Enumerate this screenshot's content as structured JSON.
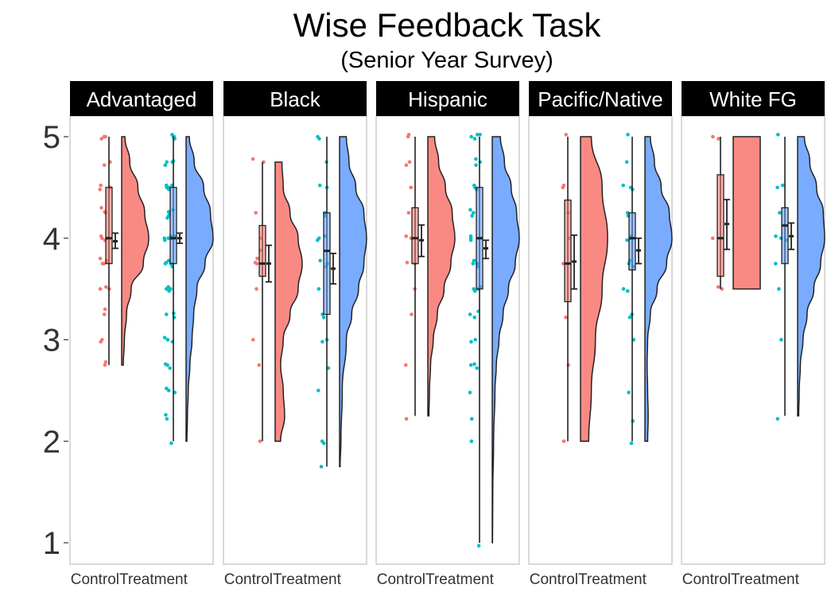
{
  "chart_data": {
    "type": "raincloud",
    "title": "Wise Feedback Task",
    "subtitle": "(Senior Year Survey)",
    "xlabel": "",
    "ylabel": "",
    "ylim": [
      0.8,
      5.2
    ],
    "y_ticks": [
      1,
      2,
      3,
      4,
      5
    ],
    "grid": false,
    "legend": "none",
    "categories": [
      "Control",
      "Treatment"
    ],
    "colors": {
      "control_fill": "#F8766D",
      "treatment_fill": "#619CFF",
      "control_point": "#F8766D",
      "treatment_point": "#00BFC4",
      "strip_bg": "#000000",
      "strip_text": "#FFFFFF",
      "panel_border": "#B3B3B3",
      "outline": "#222222"
    },
    "panels": [
      {
        "name": "Advantaged",
        "groups": [
          {
            "condition": "Control",
            "range": [
              2.75,
              5
            ],
            "quartiles": [
              3.75,
              4,
              4.5
            ],
            "mean": 3.97,
            "se": [
              3.9,
              4.05
            ],
            "density": [
              [
                2.75,
                0.06
              ],
              [
                3,
                0.1
              ],
              [
                3.25,
                0.18
              ],
              [
                3.5,
                0.35
              ],
              [
                3.75,
                0.8
              ],
              [
                4,
                1
              ],
              [
                4.25,
                0.85
              ],
              [
                4.5,
                0.6
              ],
              [
                4.75,
                0.3
              ],
              [
                5,
                0.12
              ]
            ],
            "points": [
              2.75,
              2.78,
              2.98,
              3.0,
              3.25,
              3.3,
              3.5,
              3.5,
              3.52,
              3.75,
              3.75,
              3.76,
              3.78,
              3.8,
              3.98,
              4.0,
              4.0,
              4.02,
              4.25,
              4.26,
              4.3,
              4.48,
              4.5,
              4.5,
              4.52,
              4.72,
              4.75,
              4.98,
              5.0,
              5.0
            ]
          },
          {
            "condition": "Treatment",
            "range": [
              2,
              5
            ],
            "quartiles": [
              3.75,
              4,
              4.5
            ],
            "mean": 4.0,
            "se": [
              3.95,
              4.05
            ],
            "density": [
              [
                2,
                0.03
              ],
              [
                2.25,
                0.05
              ],
              [
                2.5,
                0.08
              ],
              [
                2.75,
                0.14
              ],
              [
                3,
                0.22
              ],
              [
                3.25,
                0.28
              ],
              [
                3.5,
                0.4
              ],
              [
                3.75,
                0.7
              ],
              [
                4,
                1
              ],
              [
                4.25,
                0.9
              ],
              [
                4.5,
                0.65
              ],
              [
                4.75,
                0.3
              ],
              [
                5,
                0.12
              ]
            ],
            "points": [
              1.98,
              2.22,
              2.26,
              2.48,
              2.5,
              2.52,
              2.72,
              2.75,
              2.76,
              2.98,
              3.0,
              3.0,
              3.02,
              3.22,
              3.25,
              3.26,
              3.48,
              3.5,
              3.5,
              3.52,
              3.72,
              3.75,
              3.75,
              3.76,
              3.78,
              3.98,
              4.0,
              4.0,
              4.0,
              4.02,
              4.02,
              4.2,
              4.22,
              4.25,
              4.26,
              4.28,
              4.48,
              4.5,
              4.5,
              4.52,
              4.52,
              4.72,
              4.75,
              4.75,
              4.76,
              4.98,
              5.0,
              5.0,
              5.02
            ]
          }
        ]
      },
      {
        "name": "Black",
        "groups": [
          {
            "condition": "Control",
            "range": [
              2,
              4.75
            ],
            "quartiles": [
              3.625,
              3.75,
              4.125
            ],
            "mean": 3.75,
            "se": [
              3.57,
              3.93
            ],
            "density": [
              [
                2,
                0.2
              ],
              [
                2.25,
                0.35
              ],
              [
                2.5,
                0.3
              ],
              [
                2.75,
                0.2
              ],
              [
                3,
                0.3
              ],
              [
                3.25,
                0.55
              ],
              [
                3.5,
                0.85
              ],
              [
                3.75,
                1
              ],
              [
                4,
                0.85
              ],
              [
                4.25,
                0.55
              ],
              [
                4.5,
                0.3
              ],
              [
                4.75,
                0.25
              ]
            ],
            "points": [
              2.0,
              2.75,
              3.0,
              3.5,
              3.75,
              3.76,
              3.8,
              3.88,
              4.0,
              4.25,
              4.75,
              4.78
            ]
          },
          {
            "condition": "Treatment",
            "range": [
              1.75,
              5
            ],
            "quartiles": [
              3.25,
              3.875,
              4.25
            ],
            "mean": 3.7,
            "se": [
              3.55,
              3.85
            ],
            "density": [
              [
                1.75,
                0.02
              ],
              [
                2,
                0.05
              ],
              [
                2.5,
                0.1
              ],
              [
                3,
                0.25
              ],
              [
                3.25,
                0.45
              ],
              [
                3.5,
                0.7
              ],
              [
                3.75,
                0.9
              ],
              [
                4,
                1
              ],
              [
                4.25,
                0.9
              ],
              [
                4.5,
                0.6
              ],
              [
                4.75,
                0.35
              ],
              [
                5,
                0.25
              ]
            ],
            "points": [
              1.75,
              1.98,
              2.0,
              2.5,
              2.72,
              2.98,
              3.0,
              3.22,
              3.25,
              3.5,
              3.72,
              3.75,
              3.78,
              3.98,
              4.0,
              4.02,
              4.22,
              4.25,
              4.5,
              4.52,
              4.75,
              4.98,
              5.0
            ]
          }
        ]
      },
      {
        "name": "Hispanic",
        "groups": [
          {
            "condition": "Control",
            "range": [
              2.25,
              5
            ],
            "quartiles": [
              3.75,
              4,
              4.3
            ],
            "mean": 3.98,
            "se": [
              3.82,
              4.13
            ],
            "density": [
              [
                2.25,
                0.04
              ],
              [
                2.5,
                0.06
              ],
              [
                2.75,
                0.1
              ],
              [
                3,
                0.2
              ],
              [
                3.25,
                0.35
              ],
              [
                3.5,
                0.6
              ],
              [
                3.75,
                0.85
              ],
              [
                4,
                1
              ],
              [
                4.25,
                0.9
              ],
              [
                4.5,
                0.65
              ],
              [
                4.75,
                0.4
              ],
              [
                5,
                0.25
              ]
            ],
            "points": [
              2.22,
              2.75,
              3.25,
              3.5,
              3.75,
              3.76,
              4.0,
              4.02,
              4.25,
              4.5,
              4.72,
              4.75,
              5.0,
              5.02
            ]
          },
          {
            "condition": "Treatment",
            "range": [
              1,
              5
            ],
            "quartiles": [
              3.5,
              4,
              4.5
            ],
            "mean": 3.9,
            "se": [
              3.8,
              3.98
            ],
            "density": [
              [
                1,
                0.01
              ],
              [
                1.5,
                0.02
              ],
              [
                2,
                0.05
              ],
              [
                2.5,
                0.1
              ],
              [
                2.75,
                0.15
              ],
              [
                3,
                0.25
              ],
              [
                3.25,
                0.4
              ],
              [
                3.5,
                0.6
              ],
              [
                3.75,
                0.85
              ],
              [
                4,
                1
              ],
              [
                4.25,
                0.9
              ],
              [
                4.5,
                0.7
              ],
              [
                4.75,
                0.45
              ],
              [
                5,
                0.3
              ]
            ],
            "points": [
              0.97,
              2.0,
              2.22,
              2.48,
              2.72,
              2.75,
              2.76,
              2.98,
              3.0,
              3.22,
              3.25,
              3.28,
              3.48,
              3.5,
              3.5,
              3.52,
              3.72,
              3.75,
              3.75,
              3.78,
              3.98,
              4.0,
              4.0,
              4.02,
              4.22,
              4.25,
              4.28,
              4.48,
              4.5,
              4.52,
              4.72,
              4.75,
              4.78,
              4.98,
              5.0,
              5.02,
              5.02
            ]
          }
        ]
      },
      {
        "name": "Pacific/Native",
        "groups": [
          {
            "condition": "Control",
            "range": [
              2,
              5
            ],
            "quartiles": [
              3.375,
              3.75,
              4.375
            ],
            "mean": 3.77,
            "se": [
              3.5,
              4.03
            ],
            "density": [
              [
                2,
                0.3
              ],
              [
                2.5,
                0.4
              ],
              [
                3,
                0.55
              ],
              [
                3.5,
                0.8
              ],
              [
                4,
                1
              ],
              [
                4.5,
                0.8
              ],
              [
                5,
                0.4
              ]
            ],
            "points": [
              2.0,
              2.75,
              3.22,
              3.75,
              4.0,
              4.25,
              4.5,
              4.52,
              5.02
            ]
          },
          {
            "condition": "Treatment",
            "range": [
              2,
              5
            ],
            "quartiles": [
              3.6875,
              4,
              4.25
            ],
            "mean": 3.88,
            "se": [
              3.75,
              4.0
            ],
            "density": [
              [
                2,
                0.1
              ],
              [
                2.25,
                0.12
              ],
              [
                2.5,
                0.1
              ],
              [
                2.75,
                0.08
              ],
              [
                3,
                0.1
              ],
              [
                3.25,
                0.2
              ],
              [
                3.5,
                0.45
              ],
              [
                3.75,
                0.8
              ],
              [
                4,
                1
              ],
              [
                4.25,
                0.9
              ],
              [
                4.5,
                0.6
              ],
              [
                4.75,
                0.35
              ],
              [
                5,
                0.2
              ]
            ],
            "points": [
              1.98,
              2.2,
              2.48,
              3.0,
              3.22,
              3.25,
              3.48,
              3.5,
              3.72,
              3.75,
              3.78,
              3.98,
              4.0,
              4.02,
              4.22,
              4.25,
              4.48,
              4.5,
              4.52,
              4.75,
              5.02
            ]
          }
        ]
      },
      {
        "name": "White FG",
        "groups": [
          {
            "condition": "Control",
            "range": [
              3.5,
              5
            ],
            "quartiles": [
              3.625,
              4,
              4.625
            ],
            "mean": 4.14,
            "se": [
              3.89,
              4.38
            ],
            "density": [
              [
                3.5,
                1
              ],
              [
                3.75,
                1
              ],
              [
                4,
                1
              ],
              [
                4.25,
                1
              ],
              [
                4.5,
                1
              ],
              [
                4.75,
                1
              ],
              [
                5,
                1
              ]
            ],
            "points": [
              3.5,
              3.52,
              4.0,
              4.98,
              5.0
            ]
          },
          {
            "condition": "Treatment",
            "range": [
              2.25,
              5
            ],
            "quartiles": [
              3.75,
              4.125,
              4.3
            ],
            "mean": 4.02,
            "se": [
              3.89,
              4.15
            ],
            "density": [
              [
                2.25,
                0.04
              ],
              [
                2.5,
                0.06
              ],
              [
                2.75,
                0.1
              ],
              [
                3,
                0.2
              ],
              [
                3.25,
                0.35
              ],
              [
                3.5,
                0.6
              ],
              [
                3.75,
                0.85
              ],
              [
                4,
                1
              ],
              [
                4.25,
                0.95
              ],
              [
                4.5,
                0.7
              ],
              [
                4.75,
                0.45
              ],
              [
                5,
                0.25
              ]
            ],
            "points": [
              2.22,
              3.0,
              3.5,
              3.75,
              3.98,
              4.0,
              4.02,
              4.25,
              4.5,
              4.52,
              5.02
            ]
          }
        ]
      }
    ]
  }
}
